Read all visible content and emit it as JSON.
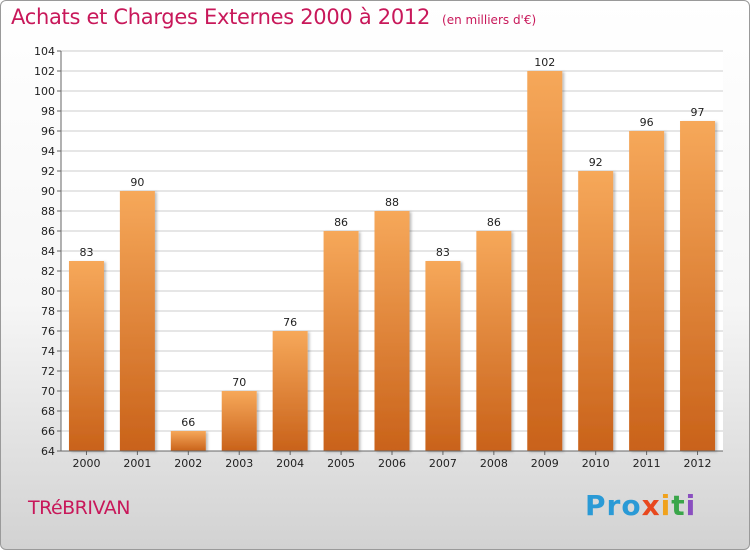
{
  "header": {
    "title": "Achats et Charges Externes 2000 à 2012",
    "unit": "(en milliers d'€)"
  },
  "footer": {
    "commune": "TRéBRIVAN",
    "brand_letters": [
      {
        "char": "P",
        "color": "#2a9ad6"
      },
      {
        "char": "r",
        "color": "#2a9ad6"
      },
      {
        "char": "o",
        "color": "#2a9ad6"
      },
      {
        "char": "x",
        "color": "#e8481e"
      },
      {
        "char": "i",
        "color": "#f0a21c"
      },
      {
        "char": "t",
        "color": "#3aa64a"
      },
      {
        "char": "i",
        "color": "#8a4fc0"
      }
    ]
  },
  "colors": {
    "bar_top": "#f6a85a",
    "bar_bottom": "#c9621a",
    "title": "#c8185a",
    "grid": "#cccccc"
  },
  "chart_data": {
    "type": "bar",
    "categories": [
      "2000",
      "2001",
      "2002",
      "2003",
      "2004",
      "2005",
      "2006",
      "2007",
      "2008",
      "2009",
      "2010",
      "2011",
      "2012"
    ],
    "values": [
      83,
      90,
      66,
      70,
      76,
      86,
      88,
      83,
      86,
      102,
      92,
      96,
      97
    ],
    "ylim": [
      64,
      104
    ],
    "yticks": [
      64,
      66,
      68,
      70,
      72,
      74,
      76,
      78,
      80,
      82,
      84,
      86,
      88,
      90,
      92,
      94,
      96,
      98,
      100,
      102,
      104
    ],
    "grid": true
  }
}
